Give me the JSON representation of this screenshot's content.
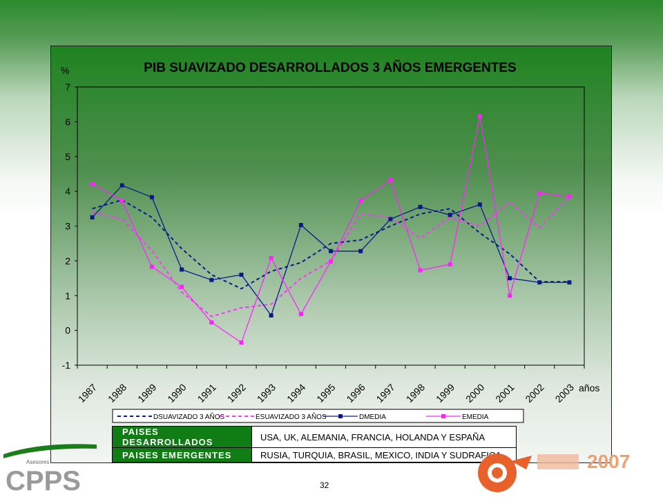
{
  "chart_data": {
    "type": "line",
    "title": "PIB SUAVIZADO DESARROLLADOS 3 AÑOS EMERGENTES",
    "ylabel": "%",
    "xlabel": "años",
    "ylim": [
      -1,
      7
    ],
    "yticks": [
      -1,
      0,
      1,
      2,
      3,
      4,
      5,
      6,
      7
    ],
    "categories": [
      "1987",
      "1988",
      "1989",
      "1990",
      "1991",
      "1992",
      "1993",
      "1994",
      "1995",
      "1996",
      "1997",
      "1998",
      "1999",
      "2000",
      "2001",
      "2002",
      "2003"
    ],
    "grid": false,
    "legend_position": "bottom",
    "series": [
      {
        "name": "DSUAVIZADO 3 AÑOS",
        "color": "#0b1a8a",
        "style": "dashed",
        "marker": false,
        "values": [
          3.5,
          3.75,
          3.25,
          2.35,
          1.6,
          1.2,
          1.7,
          1.95,
          2.5,
          2.6,
          3.0,
          3.35,
          3.5,
          2.8,
          2.2,
          1.4,
          1.4
        ]
      },
      {
        "name": "ESUAVIZADO 3 AÑOS",
        "color": "#ff33ff",
        "style": "dashed",
        "marker": false,
        "values": [
          3.4,
          3.2,
          2.3,
          1.1,
          0.4,
          0.65,
          0.75,
          1.5,
          2.0,
          3.35,
          3.25,
          2.65,
          3.25,
          3.0,
          3.7,
          2.95,
          3.85
        ]
      },
      {
        "name": "DMEDIA",
        "color": "#0b1a8a",
        "style": "solid",
        "marker": true,
        "values": [
          3.25,
          4.17,
          3.83,
          1.75,
          1.45,
          1.6,
          0.43,
          3.03,
          2.28,
          2.28,
          3.2,
          3.55,
          3.32,
          3.62,
          1.5,
          1.38,
          1.38
        ]
      },
      {
        "name": "EMEDIA",
        "color": "#ff22ff",
        "style": "solid",
        "marker": true,
        "values": [
          4.22,
          3.72,
          1.83,
          1.25,
          0.23,
          -0.35,
          2.08,
          0.47,
          1.98,
          3.73,
          4.32,
          1.73,
          1.9,
          6.15,
          1.0,
          3.95,
          3.85
        ]
      }
    ]
  },
  "info_table": [
    {
      "label": "PAISES DESARROLLADOS",
      "value": "USA, UK, ALEMANIA, FRANCIA, HOLANDA Y ESPAÑA"
    },
    {
      "label": "PAISES EMERGENTES",
      "value": "RUSIA, TURQUIA, BRASIL, MEXICO, INDIA Y SUDRAFICA"
    }
  ],
  "footer": {
    "page_number": "32",
    "left_logo_text": "CPPS",
    "left_logo_small": "Asesores",
    "right_logo_text": "2007"
  }
}
